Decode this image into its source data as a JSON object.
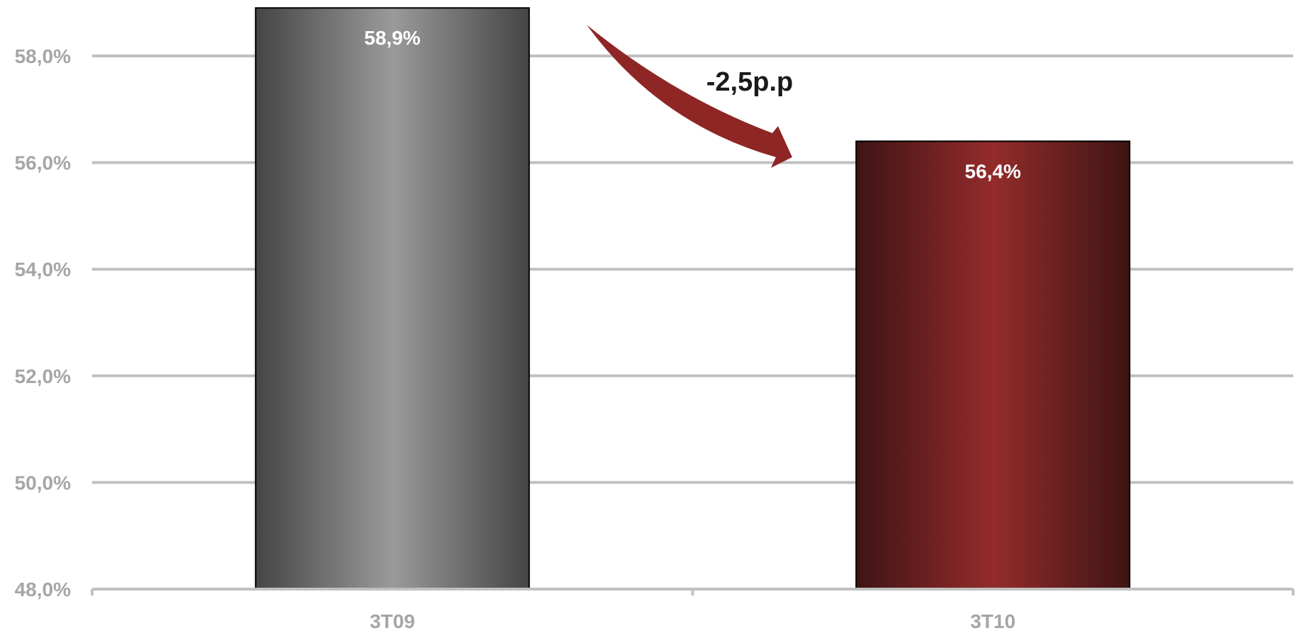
{
  "chart_data": {
    "type": "bar",
    "categories": [
      "3T09",
      "3T10"
    ],
    "values": [
      58.9,
      56.4
    ],
    "value_labels": [
      "58,9%",
      "56,4%"
    ],
    "ylim": [
      48,
      59
    ],
    "yticks": [
      48,
      50,
      52,
      54,
      56,
      58
    ],
    "ytick_labels": [
      "48,0%",
      "50,0%",
      "52,0%",
      "54,0%",
      "56,0%",
      "58,0%"
    ],
    "grid": true,
    "legend": "none",
    "annotation": {
      "text": "-2,5p.p",
      "arrow": "from-3T09-to-3T10"
    },
    "colors": {
      "bar_3T09": [
        "#454545",
        "#9a9a9a",
        "#454545"
      ],
      "bar_3T10": [
        "#3f1414",
        "#942b2b",
        "#3f1414"
      ],
      "grid": "#c0c0c0",
      "axis_text": "#a6a6a6",
      "arrow": "#8e2626"
    }
  }
}
